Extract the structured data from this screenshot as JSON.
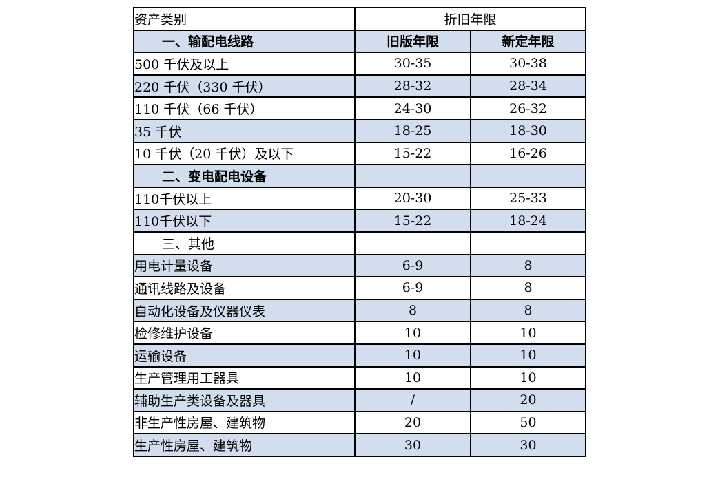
{
  "table": {
    "header": {
      "asset_category": "资产类别",
      "depreciation_years": "折旧年限"
    },
    "rows": [
      {
        "label": "一、输配电线路",
        "old": "旧版年限",
        "new": "新定年限",
        "section": true,
        "bold": true
      },
      {
        "label": "500 千伏及以上",
        "old": "30-35",
        "new": "30-38",
        "section": false,
        "bold": false
      },
      {
        "label": "220 千伏（330 千伏）",
        "old": "28-32",
        "new": "28-34",
        "section": false,
        "bold": false
      },
      {
        "label": "110 千伏（66 千伏）",
        "old": "24-30",
        "new": "26-32",
        "section": false,
        "bold": false
      },
      {
        "label": "35 千伏",
        "old": "18-25",
        "new": "18-30",
        "section": false,
        "bold": false
      },
      {
        "label": "10 千伏（20 千伏）及以下",
        "old": "15-22",
        "new": "16-26",
        "section": false,
        "bold": false
      },
      {
        "label": "二、变电配电设备",
        "old": "",
        "new": "",
        "section": true,
        "bold": true
      },
      {
        "label": "110千伏以上",
        "old": "20-30",
        "new": "25-33",
        "section": false,
        "bold": false
      },
      {
        "label": "110千伏以下",
        "old": "15-22",
        "new": "18-24",
        "section": false,
        "bold": false
      },
      {
        "label": "三、其他",
        "old": "",
        "new": "",
        "section": true,
        "bold": false
      },
      {
        "label": "用电计量设备",
        "old": "6-9",
        "new": "8",
        "section": false,
        "bold": false
      },
      {
        "label": "通讯线路及设备",
        "old": "6-9",
        "new": "8",
        "section": false,
        "bold": false
      },
      {
        "label": "自动化设备及仪器仪表",
        "old": "8",
        "new": "8",
        "section": false,
        "bold": false
      },
      {
        "label": "检修维护设备",
        "old": "10",
        "new": "10",
        "section": false,
        "bold": false
      },
      {
        "label": "运输设备",
        "old": "10",
        "new": "10",
        "section": false,
        "bold": false
      },
      {
        "label": "生产管理用工器具",
        "old": "10",
        "new": "10",
        "section": false,
        "bold": false
      },
      {
        "label": "辅助生产类设备及器具",
        "old": "/",
        "new": "20",
        "section": false,
        "bold": false
      },
      {
        "label": "非生产性房屋、建筑物",
        "old": "20",
        "new": "50",
        "section": false,
        "bold": false
      },
      {
        "label": "生产性房屋、建筑物",
        "old": "30",
        "new": "30",
        "section": false,
        "bold": false
      }
    ],
    "colors": {
      "row_shade": "#d2deed",
      "border": "#000000",
      "text": "#000000",
      "background": "#ffffff"
    }
  }
}
